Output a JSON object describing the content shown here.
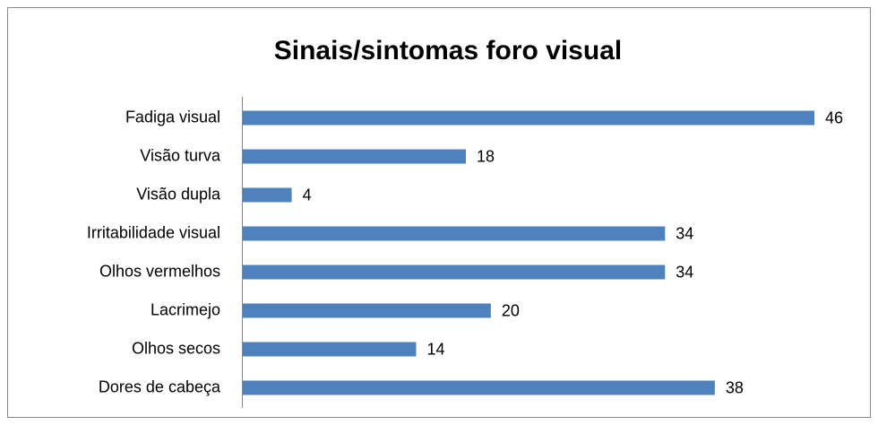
{
  "chart_data": {
    "type": "bar",
    "orientation": "horizontal",
    "title": "Sinais/sintomas foro visual",
    "categories": [
      "Fadiga visual",
      "Visão turva",
      "Visão dupla",
      "Irritabilidade visual",
      "Olhos vermelhos",
      "Lacrimejo",
      "Olhos secos",
      "Dores de cabeça"
    ],
    "values": [
      46,
      18,
      4,
      34,
      34,
      20,
      14,
      38
    ],
    "color": "#4f81bd"
  }
}
